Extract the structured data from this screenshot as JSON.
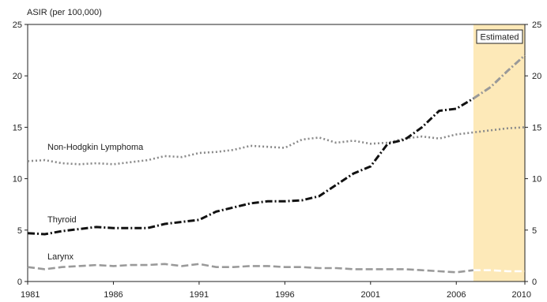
{
  "chart_data": {
    "type": "line",
    "ylabel": "ASIR (per 100,000)",
    "xlim": [
      1981,
      2010
    ],
    "ylim": [
      0,
      25
    ],
    "x_ticks": [
      "1981",
      "1986",
      "1991",
      "1996",
      "2001",
      "2006",
      "2010"
    ],
    "y_ticks": [
      "0",
      "5",
      "10",
      "15",
      "20",
      "25"
    ],
    "grid": false,
    "estimated": {
      "label": "Estimated",
      "from": 2007,
      "to": 2010,
      "color": "#fde9b8"
    },
    "series": [
      {
        "name": "Non-Hodgkin Lymphoma",
        "style": "dotted",
        "color": "#8a8a8a",
        "x": [
          1981,
          1982,
          1983,
          1984,
          1985,
          1986,
          1987,
          1988,
          1989,
          1990,
          1991,
          1992,
          1993,
          1994,
          1995,
          1996,
          1997,
          1998,
          1999,
          2000,
          2001,
          2002,
          2003,
          2004,
          2005,
          2006,
          2007,
          2008,
          2009,
          2010
        ],
        "values": [
          11.7,
          11.8,
          11.5,
          11.4,
          11.5,
          11.4,
          11.6,
          11.8,
          12.2,
          12.1,
          12.5,
          12.6,
          12.8,
          13.2,
          13.1,
          13.0,
          13.8,
          14.0,
          13.5,
          13.7,
          13.4,
          13.5,
          13.9,
          14.1,
          13.9,
          14.3,
          14.5,
          14.7,
          14.9,
          15.0
        ]
      },
      {
        "name": "Thyroid",
        "style": "dash-dot",
        "color": "#111111",
        "estimated_color": "#999999",
        "x": [
          1981,
          1982,
          1983,
          1984,
          1985,
          1986,
          1987,
          1988,
          1989,
          1990,
          1991,
          1992,
          1993,
          1994,
          1995,
          1996,
          1997,
          1998,
          1999,
          2000,
          2001,
          2002,
          2003,
          2004,
          2005,
          2006,
          2007,
          2008,
          2009,
          2010
        ],
        "values": [
          4.7,
          4.6,
          4.9,
          5.1,
          5.3,
          5.2,
          5.2,
          5.2,
          5.6,
          5.8,
          6.0,
          6.8,
          7.2,
          7.6,
          7.8,
          7.8,
          7.9,
          8.3,
          9.4,
          10.5,
          11.2,
          13.4,
          13.8,
          15.0,
          16.6,
          16.8,
          17.8,
          18.9,
          20.5,
          22.0
        ]
      },
      {
        "name": "Larynx",
        "style": "dashed",
        "color": "#9a9a9a",
        "estimated_color": "#ffffff",
        "x": [
          1981,
          1982,
          1983,
          1984,
          1985,
          1986,
          1987,
          1988,
          1989,
          1990,
          1991,
          1992,
          1993,
          1994,
          1995,
          1996,
          1997,
          1998,
          1999,
          2000,
          2001,
          2002,
          2003,
          2004,
          2005,
          2006,
          2007,
          2008,
          2009,
          2010
        ],
        "values": [
          1.4,
          1.2,
          1.4,
          1.5,
          1.6,
          1.5,
          1.6,
          1.6,
          1.7,
          1.5,
          1.7,
          1.4,
          1.4,
          1.5,
          1.5,
          1.4,
          1.4,
          1.3,
          1.3,
          1.2,
          1.2,
          1.2,
          1.2,
          1.1,
          1.0,
          0.9,
          1.1,
          1.1,
          1.0,
          1.0
        ]
      }
    ]
  }
}
